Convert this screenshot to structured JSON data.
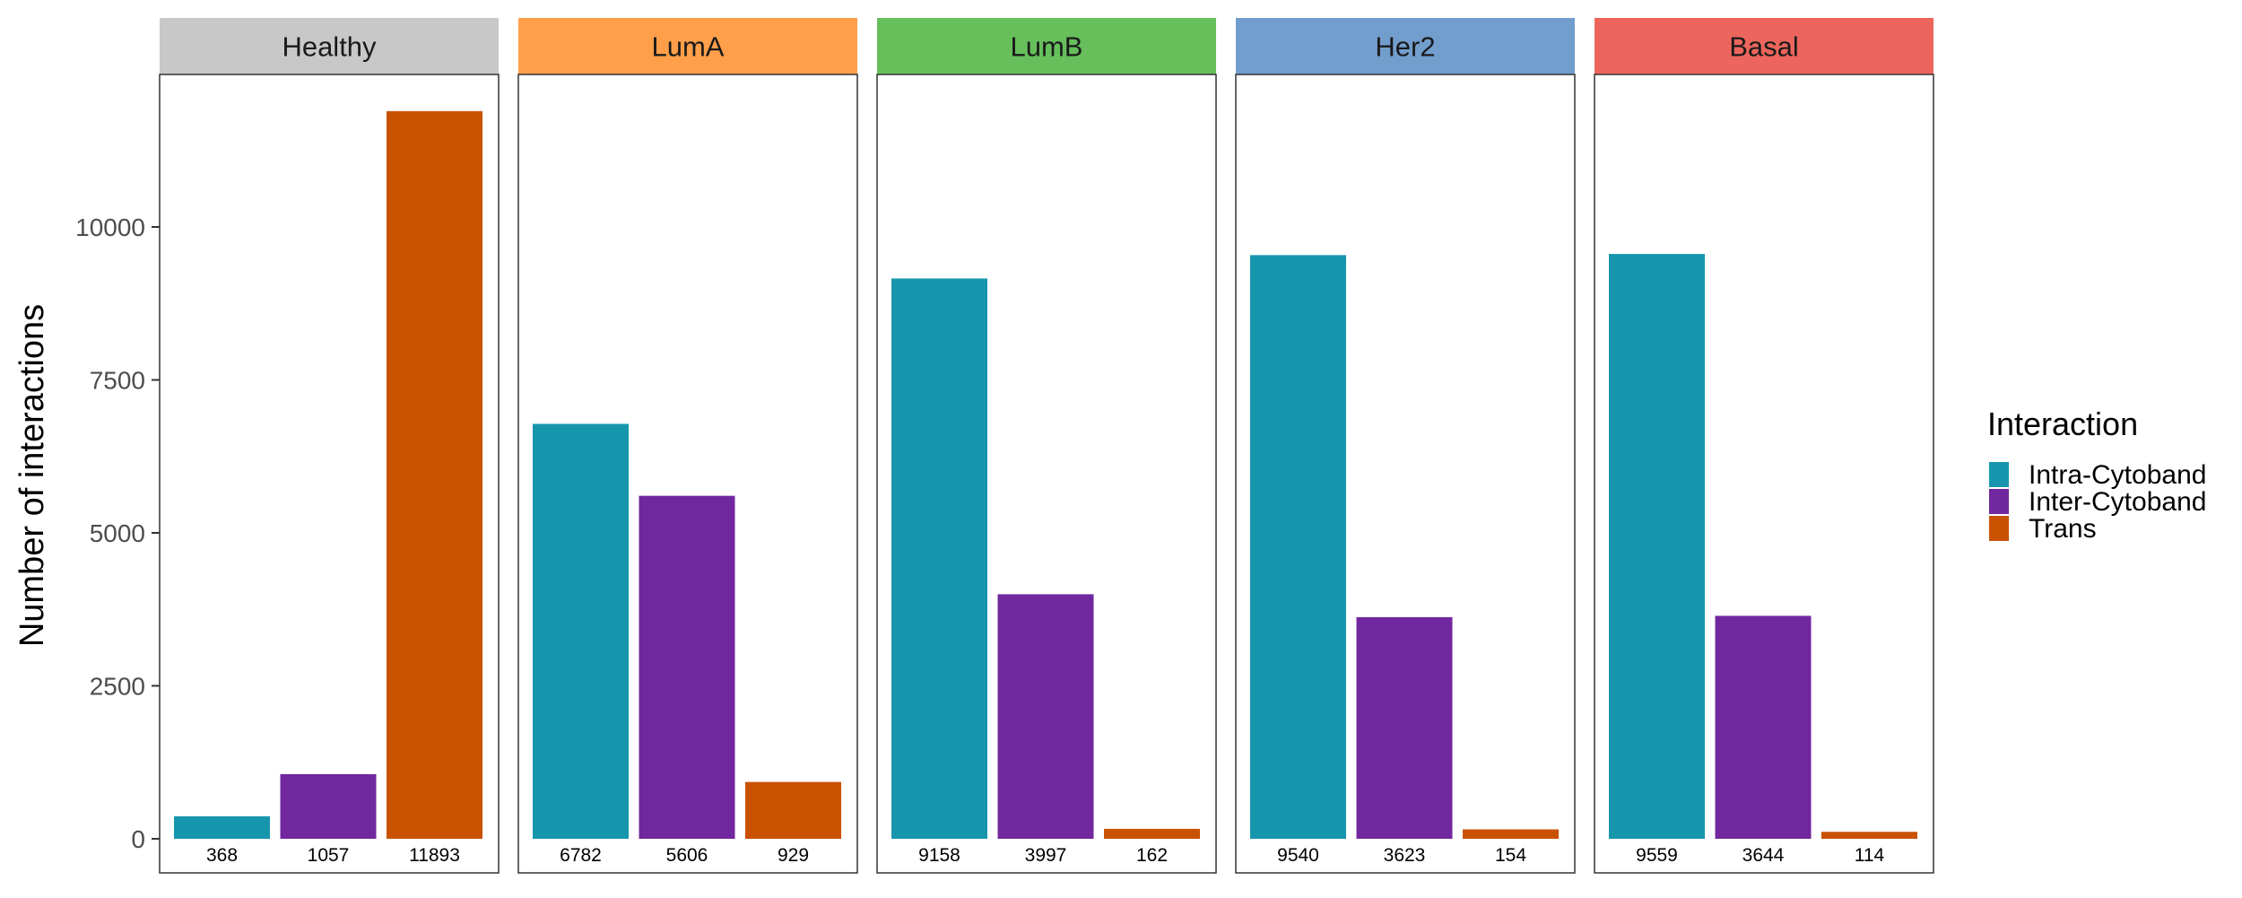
{
  "chart_data": {
    "type": "bar",
    "ylabel": "Number of interactions",
    "y_ticks": [
      0,
      2500,
      5000,
      7500,
      10000
    ],
    "y_tick_labels": [
      "0",
      "2500",
      "5000",
      "7500",
      "10000"
    ],
    "ylim": [
      0,
      12500
    ],
    "legend": {
      "title": "Interaction",
      "placement": "right"
    },
    "series": [
      {
        "name": "Intra-Cytoband",
        "color": "#1696AD"
      },
      {
        "name": "Inter-Cytoband",
        "color": "#71289E"
      },
      {
        "name": "Trans",
        "color": "#C85200"
      }
    ],
    "facets": [
      {
        "label": "Healthy",
        "strip_color": "#C8C8C8",
        "values": [
          368,
          1057,
          11893
        ],
        "value_labels": [
          "368",
          "1057",
          "11893"
        ]
      },
      {
        "label": "LumA",
        "strip_color": "#FF9F4A",
        "values": [
          6782,
          5606,
          929
        ],
        "value_labels": [
          "6782",
          "5606",
          "929"
        ]
      },
      {
        "label": "LumB",
        "strip_color": "#67BF5C",
        "values": [
          9158,
          3997,
          162
        ],
        "value_labels": [
          "9158",
          "3997",
          "162"
        ]
      },
      {
        "label": "Her2",
        "strip_color": "#729ECE",
        "values": [
          9540,
          3623,
          154
        ],
        "value_labels": [
          "9540",
          "3623",
          "154"
        ]
      },
      {
        "label": "Basal",
        "strip_color": "#ED665D",
        "values": [
          9559,
          3644,
          114
        ],
        "value_labels": [
          "9559",
          "3644",
          "114"
        ]
      }
    ]
  }
}
